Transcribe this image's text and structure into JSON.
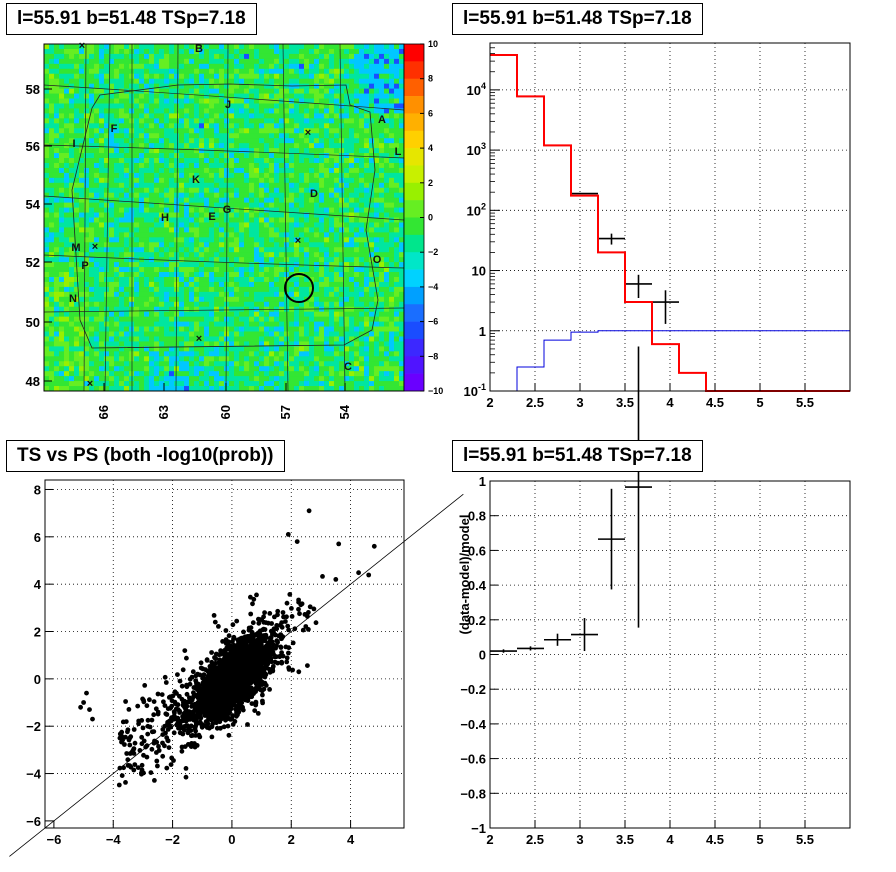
{
  "chart_data": [
    {
      "type": "heatmap",
      "title": "l=55.91 b=51.48 TSp=7.18",
      "x_ticks": [
        "66",
        "63",
        "60",
        "57",
        "54"
      ],
      "y_ticks": [
        "58",
        "56",
        "54",
        "52",
        "50",
        "48"
      ],
      "colorbar_ticks": [
        "10",
        "8",
        "6",
        "4",
        "2",
        "0",
        "−2",
        "−4",
        "−6",
        "−8",
        "−10"
      ],
      "zlim": [
        -10,
        10
      ],
      "source_labels": [
        "A",
        "B",
        "C",
        "D",
        "E",
        "F",
        "G",
        "H",
        "I",
        "J",
        "K",
        "L",
        "M",
        "N",
        "O",
        "P"
      ]
    },
    {
      "type": "line",
      "title": "l=55.91 b=51.48 TSp=7.18",
      "log_y": true,
      "xlim": [
        2,
        6
      ],
      "ylim": [
        0.1,
        60000
      ],
      "x_ticks": [
        "2",
        "2.5",
        "3",
        "3.5",
        "4",
        "4.5",
        "5",
        "5.5"
      ],
      "y_ticks": [
        "10^4",
        "10^3",
        "10^2",
        "10",
        "1",
        "10^-1"
      ],
      "grid": true,
      "edges": [
        2.0,
        2.3,
        2.6,
        2.9,
        3.2,
        3.5,
        3.8,
        4.1,
        4.4,
        4.7,
        5.0,
        5.3,
        5.6,
        5.9,
        6.0
      ],
      "model_red": [
        38000,
        7800,
        1200,
        175,
        20,
        3,
        0.6,
        0.2,
        0.1,
        0.1,
        0.1,
        0.1,
        0.1,
        0.1
      ],
      "data_black": [
        {
          "x": 2.15,
          "y": 38000,
          "err": 0
        },
        {
          "x": 2.45,
          "y": 7800,
          "err": 0
        },
        {
          "x": 2.75,
          "y": 1200,
          "err": 0
        },
        {
          "x": 3.05,
          "y": 190,
          "err": 0
        },
        {
          "x": 3.35,
          "y": 34,
          "err": 7
        },
        {
          "x": 3.65,
          "y": 6,
          "err": 2.5
        },
        {
          "x": 3.95,
          "y": 3,
          "err": 1.7
        }
      ],
      "signal_blue": [
        0.1,
        0.25,
        0.7,
        0.95,
        1,
        1,
        1,
        1,
        1,
        1,
        1,
        1,
        1,
        1
      ]
    },
    {
      "type": "scatter",
      "title": "TS vs PS (both -log10(prob))",
      "xlim": [
        -6.3,
        5.8
      ],
      "ylim": [
        -6.3,
        8.4
      ],
      "x_ticks": [
        "−6",
        "−4",
        "−2",
        "0",
        "2",
        "4"
      ],
      "y_ticks": [
        "−6",
        "−4",
        "−2",
        "0",
        "2",
        "4",
        "6",
        "8"
      ],
      "grid": true,
      "diagonal": {
        "slope": 1,
        "intercept": 0
      }
    },
    {
      "type": "line",
      "title": "l=55.91 b=51.48 TSp=7.18",
      "ylabel": "(data-model)/model",
      "xlim": [
        2,
        6
      ],
      "ylim": [
        -1,
        1
      ],
      "x_ticks": [
        "2",
        "2.5",
        "3",
        "3.5",
        "4",
        "4.5",
        "5",
        "5.5"
      ],
      "y_ticks": [
        "1",
        "0.8",
        "0.6",
        "0.4",
        "0.2",
        "0",
        "−0.2",
        "−0.4",
        "−0.6",
        "−0.8",
        "−1"
      ],
      "grid": true,
      "points": [
        {
          "x": 2.15,
          "y": 0.02,
          "xerr": 0.15,
          "yerr": 0.01
        },
        {
          "x": 2.45,
          "y": 0.035,
          "xerr": 0.15,
          "yerr": 0.012
        },
        {
          "x": 2.75,
          "y": 0.085,
          "xerr": 0.15,
          "yerr": 0.035
        },
        {
          "x": 3.05,
          "y": 0.115,
          "xerr": 0.15,
          "yerr": 0.095
        },
        {
          "x": 3.35,
          "y": 0.665,
          "xerr": 0.15,
          "yerr": 0.29
        },
        {
          "x": 3.65,
          "y": 0.965,
          "xerr": 0.15,
          "yerr": 0.81
        }
      ]
    }
  ]
}
